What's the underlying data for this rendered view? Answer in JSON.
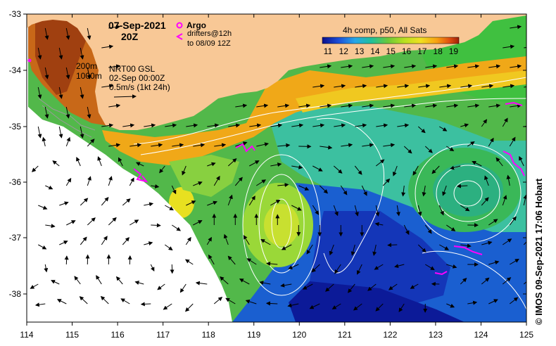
{
  "map": {
    "date": "07-Sep-2021",
    "time": "20Z",
    "argo_label": "Argo",
    "drifters_label": "drifters@12h",
    "drifters_range": "to 08/09 12Z",
    "isobath_200": "200m",
    "isobath_1000": "1000m",
    "currents_product": "NRT00 GSL",
    "currents_date": "02-Sep 00:00Z",
    "vector_scale": "0.5m/s (1kt 24h)",
    "colorbar_title": "4h comp, p50, All Sats",
    "colorbar_ticks": [
      "11",
      "12",
      "13",
      "14",
      "15",
      "16",
      "17",
      "18",
      "19"
    ],
    "credit": "© IMOS 09-Sep-2021 17:06 Hobart",
    "lon_ticks": [
      "114",
      "115",
      "116",
      "117",
      "118",
      "119",
      "120",
      "121",
      "122",
      "123",
      "124",
      "125"
    ],
    "lat_ticks": [
      "-33",
      "-34",
      "-35",
      "-36",
      "-37",
      "-38"
    ],
    "colors": {
      "land": "#f8c896",
      "no_data": "#ffffff",
      "argo": "#ff00ff",
      "contour": "#ffffff",
      "colorbar": [
        "#0a0f8c",
        "#1c4fd8",
        "#27a7e8",
        "#20c09a",
        "#6cc93a",
        "#b8e020",
        "#f0e020",
        "#f8a010",
        "#e05010",
        "#a02008"
      ]
    }
  }
}
